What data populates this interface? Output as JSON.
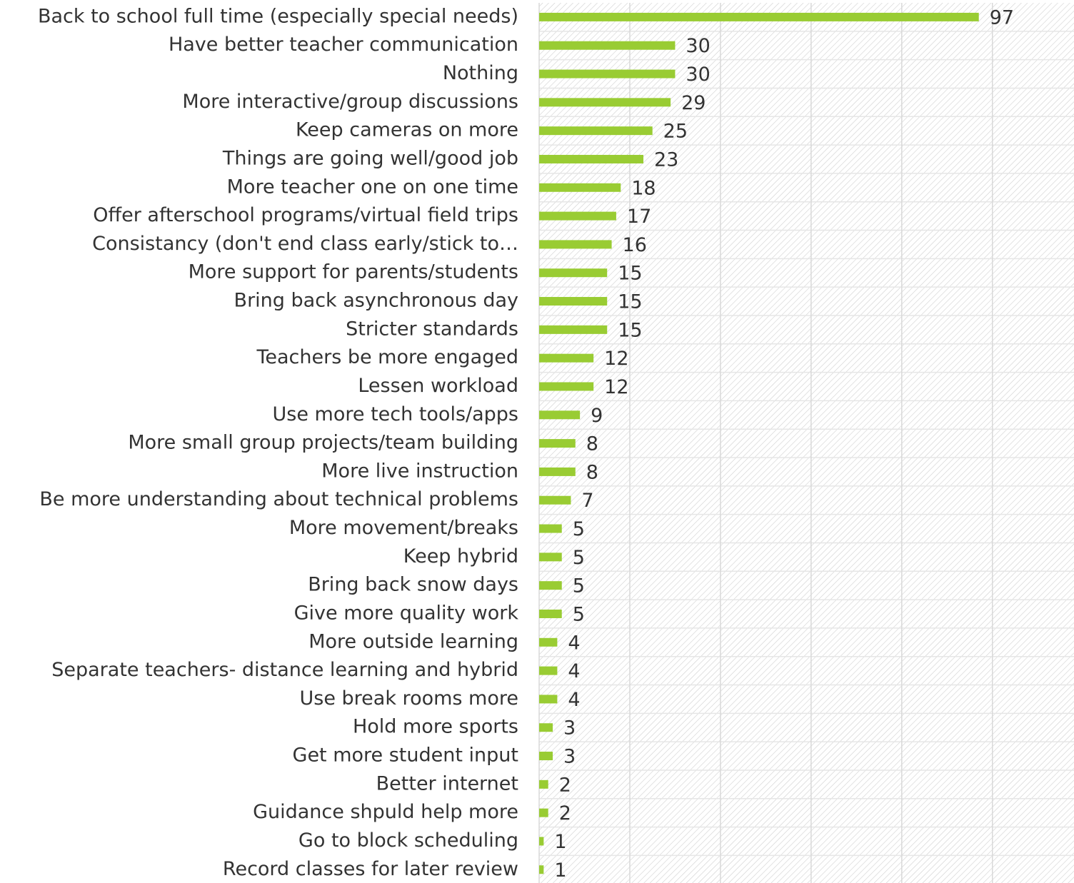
{
  "chart_data": {
    "type": "bar",
    "orientation": "horizontal",
    "categories": [
      "Back to school full time (especially special needs)",
      "Have better teacher communication",
      "Nothing",
      "More interactive/group discussions",
      "Keep cameras on more",
      "Things are going well/good job",
      "More teacher one on one time",
      "Offer afterschool programs/virtual field trips",
      "Consistancy (don't end class early/stick to…",
      "More support for parents/students",
      "Bring back asynchronous day",
      "Stricter standards",
      "Teachers be more engaged",
      "Lessen workload",
      "Use more tech tools/apps",
      "More small group projects/team building",
      "More live instruction",
      "Be more understanding about technical problems",
      "More movement/breaks",
      "Keep hybrid",
      "Bring back snow days",
      "Give more quality work",
      "More outside learning",
      "Separate teachers- distance learning and hybrid",
      "Use break rooms more",
      "Hold more sports",
      "Get more student input",
      "Better internet",
      "Guidance shpuld help more",
      "Go to block scheduling",
      "Record classes for later review"
    ],
    "values": [
      97,
      30,
      30,
      29,
      25,
      23,
      18,
      17,
      16,
      15,
      15,
      15,
      12,
      12,
      9,
      8,
      8,
      7,
      5,
      5,
      5,
      5,
      4,
      4,
      4,
      3,
      3,
      2,
      2,
      1,
      1
    ],
    "color": "#99cc33",
    "xlim": [
      0,
      118
    ],
    "xticks": [
      0,
      20,
      40,
      60,
      80,
      100
    ],
    "grid": true
  }
}
